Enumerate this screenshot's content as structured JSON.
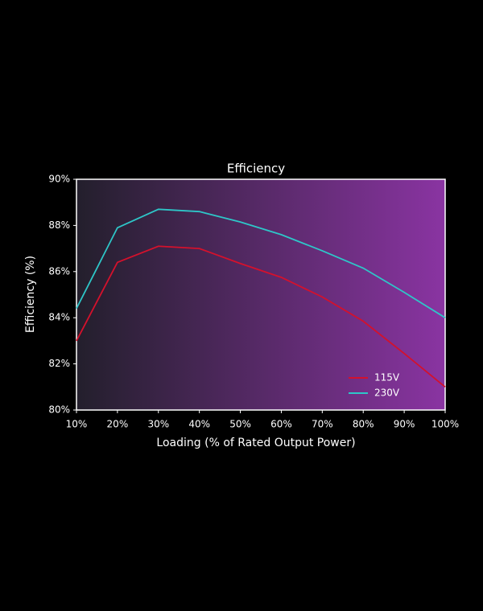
{
  "chart_data": {
    "type": "line",
    "title": "Efficiency",
    "xlabel": "Loading (% of Rated Output Power)",
    "ylabel": "Efficiency (%)",
    "x": [
      10,
      20,
      30,
      40,
      50,
      60,
      70,
      80,
      90,
      100
    ],
    "series": [
      {
        "name": "115V",
        "color": "#d4112c",
        "values": [
          83.0,
          86.4,
          87.1,
          87.0,
          86.35,
          85.75,
          84.9,
          83.85,
          82.45,
          81.0
        ]
      },
      {
        "name": "230V",
        "color": "#2ec6c8",
        "values": [
          84.4,
          87.9,
          88.7,
          88.6,
          88.15,
          87.6,
          86.9,
          86.15,
          85.1,
          84.0
        ]
      }
    ],
    "xlim": [
      10,
      100
    ],
    "xticks": [
      {
        "value": 10,
        "label": "10%"
      },
      {
        "value": 20,
        "label": "20%"
      },
      {
        "value": 30,
        "label": "30%"
      },
      {
        "value": 40,
        "label": "40%"
      },
      {
        "value": 50,
        "label": "50%"
      },
      {
        "value": 60,
        "label": "60%"
      },
      {
        "value": 70,
        "label": "70%"
      },
      {
        "value": 80,
        "label": "80%"
      },
      {
        "value": 90,
        "label": "90%"
      },
      {
        "value": 100,
        "label": "100%"
      }
    ],
    "ylim": [
      80,
      90
    ],
    "yticks": [
      {
        "value": 80,
        "label": "80%"
      },
      {
        "value": 82,
        "label": "82%"
      },
      {
        "value": 84,
        "label": "84%"
      },
      {
        "value": 86,
        "label": "86%"
      },
      {
        "value": 88,
        "label": "88%"
      },
      {
        "value": 90,
        "label": "90%"
      }
    ],
    "legend": "lower right"
  }
}
